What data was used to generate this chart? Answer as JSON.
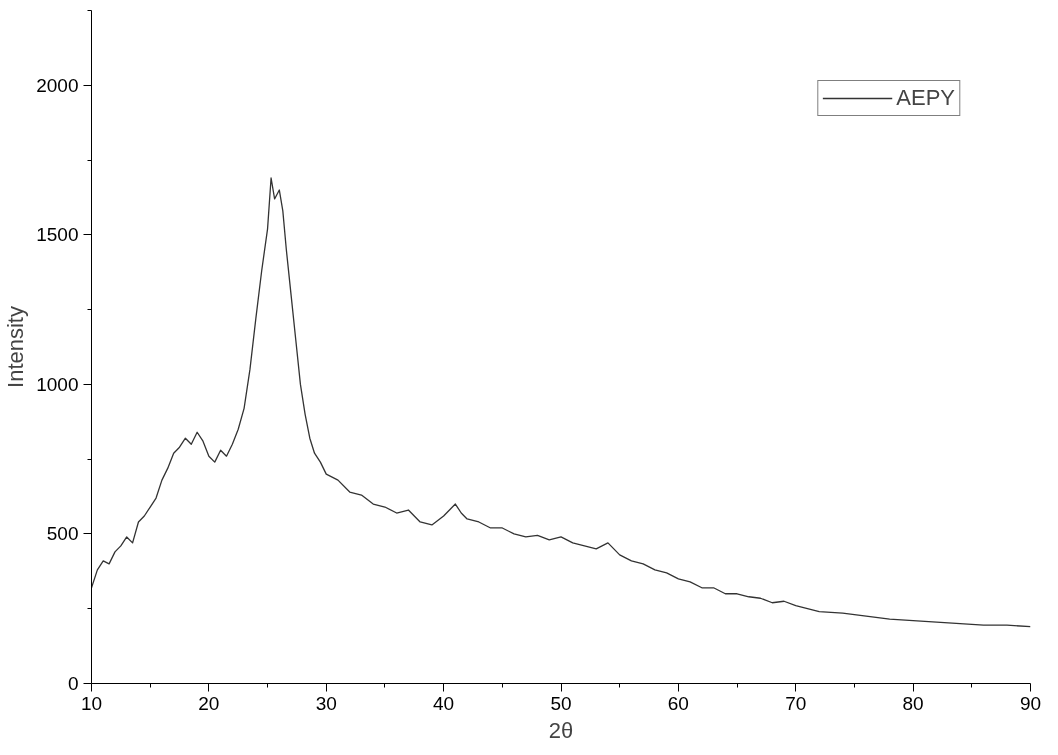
{
  "chart_data": {
    "type": "line",
    "xlabel": "2θ",
    "ylabel": "Intensity",
    "xlim": [
      10,
      90
    ],
    "ylim": [
      0,
      2250
    ],
    "xticks": [
      10,
      20,
      30,
      40,
      50,
      60,
      70,
      80,
      90
    ],
    "yticks": [
      0,
      500,
      1000,
      1500,
      2000
    ],
    "grid": false,
    "legend": "top right",
    "marker": "none",
    "line_style": "solid",
    "series": [
      {
        "name": "AEPY",
        "color": "#333333",
        "x": [
          10,
          10.5,
          11,
          11.5,
          12,
          12.5,
          13,
          13.5,
          14,
          14.5,
          15,
          15.5,
          16,
          16.5,
          17,
          17.5,
          18,
          18.5,
          19,
          19.5,
          20,
          20.5,
          21,
          21.5,
          22,
          22.5,
          23,
          23.5,
          24,
          24.5,
          25,
          25.3,
          25.6,
          26,
          26.3,
          26.6,
          27,
          27.4,
          27.8,
          28.2,
          28.6,
          29,
          29.5,
          30,
          31,
          32,
          33,
          34,
          35,
          36,
          37,
          38,
          39,
          40,
          40.5,
          41,
          41.5,
          42,
          43,
          44,
          45,
          46,
          47,
          48,
          49,
          50,
          51,
          52,
          53,
          54,
          55,
          56,
          57,
          58,
          59,
          60,
          61,
          62,
          63,
          64,
          65,
          66,
          67,
          68,
          69,
          70,
          72,
          74,
          76,
          78,
          80,
          82,
          84,
          86,
          88,
          90
        ],
        "values": [
          320,
          380,
          410,
          400,
          440,
          460,
          490,
          470,
          540,
          560,
          590,
          620,
          680,
          720,
          770,
          790,
          820,
          800,
          840,
          810,
          760,
          740,
          780,
          760,
          800,
          850,
          920,
          1050,
          1220,
          1380,
          1520,
          1690,
          1620,
          1650,
          1580,
          1450,
          1300,
          1150,
          1000,
          900,
          820,
          770,
          740,
          700,
          680,
          640,
          630,
          600,
          590,
          570,
          580,
          540,
          530,
          560,
          580,
          600,
          570,
          550,
          540,
          520,
          520,
          500,
          490,
          495,
          480,
          490,
          470,
          460,
          450,
          470,
          430,
          410,
          400,
          380,
          370,
          350,
          340,
          320,
          320,
          300,
          300,
          290,
          285,
          270,
          275,
          260,
          240,
          235,
          225,
          215,
          210,
          205,
          200,
          195,
          195,
          190
        ]
      }
    ]
  }
}
